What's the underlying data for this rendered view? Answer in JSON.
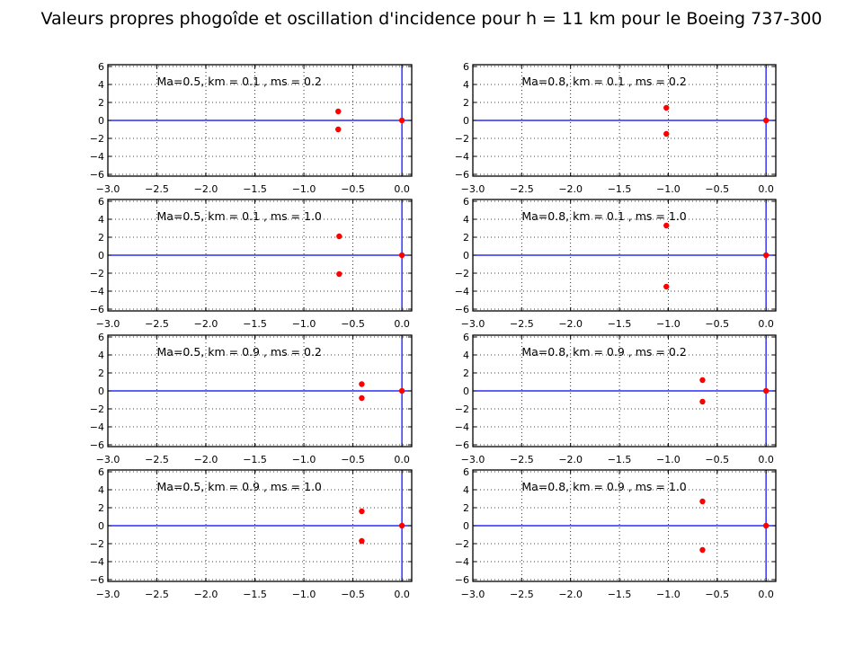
{
  "figure": {
    "title": "Valeurs propres phogoîde et oscillation d'incidence pour h = 11 km pour le Boeing 737-300"
  },
  "colors": {
    "axis_line": "#0000ff",
    "points": "#ff0000",
    "frame": "#000000",
    "grid": "#000000"
  },
  "chart_data": [
    {
      "type": "scatter",
      "title": "",
      "xlabel": "",
      "ylabel": "",
      "annotation": "Ma=0.5, km = 0.1 , ms = 0.2",
      "xlim": [
        -3.0,
        0.1
      ],
      "ylim": [
        -6.2,
        6.2
      ],
      "xticks": [
        -3.0,
        -2.5,
        -2.0,
        -1.5,
        -1.0,
        -0.5,
        0.0
      ],
      "yticks": [
        -6,
        -4,
        -2,
        0,
        2,
        4,
        6
      ],
      "grid": true,
      "points": [
        {
          "x": -0.65,
          "y": 1.0
        },
        {
          "x": -0.65,
          "y": -1.0
        },
        {
          "x": 0.0,
          "y": 0.0
        }
      ]
    },
    {
      "type": "scatter",
      "title": "",
      "xlabel": "",
      "ylabel": "",
      "annotation": "Ma=0.8, km = 0.1 , ms = 0.2",
      "xlim": [
        -3.0,
        0.1
      ],
      "ylim": [
        -6.2,
        6.2
      ],
      "xticks": [
        -3.0,
        -2.5,
        -2.0,
        -1.5,
        -1.0,
        -0.5,
        0.0
      ],
      "yticks": [
        -6,
        -4,
        -2,
        0,
        2,
        4,
        6
      ],
      "grid": true,
      "points": [
        {
          "x": -1.02,
          "y": 1.4
        },
        {
          "x": -1.02,
          "y": -1.5
        },
        {
          "x": 0.0,
          "y": 0.0
        }
      ]
    },
    {
      "type": "scatter",
      "title": "",
      "xlabel": "",
      "ylabel": "",
      "annotation": "Ma=0.5, km = 0.1 , ms = 1.0",
      "xlim": [
        -3.0,
        0.1
      ],
      "ylim": [
        -6.2,
        6.2
      ],
      "xticks": [
        -3.0,
        -2.5,
        -2.0,
        -1.5,
        -1.0,
        -0.5,
        0.0
      ],
      "yticks": [
        -6,
        -4,
        -2,
        0,
        2,
        4,
        6
      ],
      "grid": true,
      "points": [
        {
          "x": -0.64,
          "y": 2.1
        },
        {
          "x": -0.64,
          "y": -2.1
        },
        {
          "x": 0.0,
          "y": 0.0
        }
      ]
    },
    {
      "type": "scatter",
      "title": "",
      "xlabel": "",
      "ylabel": "",
      "annotation": "Ma=0.8, km = 0.1 , ms = 1.0",
      "xlim": [
        -3.0,
        0.1
      ],
      "ylim": [
        -6.2,
        6.2
      ],
      "xticks": [
        -3.0,
        -2.5,
        -2.0,
        -1.5,
        -1.0,
        -0.5,
        0.0
      ],
      "yticks": [
        -6,
        -4,
        -2,
        0,
        2,
        4,
        6
      ],
      "grid": true,
      "points": [
        {
          "x": -1.02,
          "y": 3.3
        },
        {
          "x": -1.02,
          "y": -3.5
        },
        {
          "x": 0.0,
          "y": 0.0
        }
      ]
    },
    {
      "type": "scatter",
      "title": "",
      "xlabel": "",
      "ylabel": "",
      "annotation": "Ma=0.5, km = 0.9 , ms = 0.2",
      "xlim": [
        -3.0,
        0.1
      ],
      "ylim": [
        -6.2,
        6.2
      ],
      "xticks": [
        -3.0,
        -2.5,
        -2.0,
        -1.5,
        -1.0,
        -0.5,
        0.0
      ],
      "yticks": [
        -6,
        -4,
        -2,
        0,
        2,
        4,
        6
      ],
      "grid": true,
      "points": [
        {
          "x": -0.41,
          "y": 0.75
        },
        {
          "x": -0.41,
          "y": -0.8
        },
        {
          "x": 0.0,
          "y": 0.0
        }
      ]
    },
    {
      "type": "scatter",
      "title": "",
      "xlabel": "",
      "ylabel": "",
      "annotation": "Ma=0.8, km = 0.9 , ms = 0.2",
      "xlim": [
        -3.0,
        0.1
      ],
      "ylim": [
        -6.2,
        6.2
      ],
      "xticks": [
        -3.0,
        -2.5,
        -2.0,
        -1.5,
        -1.0,
        -0.5,
        0.0
      ],
      "yticks": [
        -6,
        -4,
        -2,
        0,
        2,
        4,
        6
      ],
      "grid": true,
      "points": [
        {
          "x": -0.65,
          "y": 1.2
        },
        {
          "x": -0.65,
          "y": -1.2
        },
        {
          "x": 0.0,
          "y": 0.0
        }
      ]
    },
    {
      "type": "scatter",
      "title": "",
      "xlabel": "",
      "ylabel": "",
      "annotation": "Ma=0.5, km = 0.9 , ms = 1.0",
      "xlim": [
        -3.0,
        0.1
      ],
      "ylim": [
        -6.2,
        6.2
      ],
      "xticks": [
        -3.0,
        -2.5,
        -2.0,
        -1.5,
        -1.0,
        -0.5,
        0.0
      ],
      "yticks": [
        -6,
        -4,
        -2,
        0,
        2,
        4,
        6
      ],
      "grid": true,
      "points": [
        {
          "x": -0.41,
          "y": 1.6
        },
        {
          "x": -0.41,
          "y": -1.7
        },
        {
          "x": 0.0,
          "y": 0.0
        }
      ]
    },
    {
      "type": "scatter",
      "title": "",
      "xlabel": "",
      "ylabel": "",
      "annotation": "Ma=0.8, km = 0.9 , ms = 1.0",
      "xlim": [
        -3.0,
        0.1
      ],
      "ylim": [
        -6.2,
        6.2
      ],
      "xticks": [
        -3.0,
        -2.5,
        -2.0,
        -1.5,
        -1.0,
        -0.5,
        0.0
      ],
      "yticks": [
        -6,
        -4,
        -2,
        0,
        2,
        4,
        6
      ],
      "grid": true,
      "points": [
        {
          "x": -0.65,
          "y": 2.7
        },
        {
          "x": -0.65,
          "y": -2.7
        },
        {
          "x": 0.0,
          "y": 0.0
        }
      ]
    }
  ]
}
